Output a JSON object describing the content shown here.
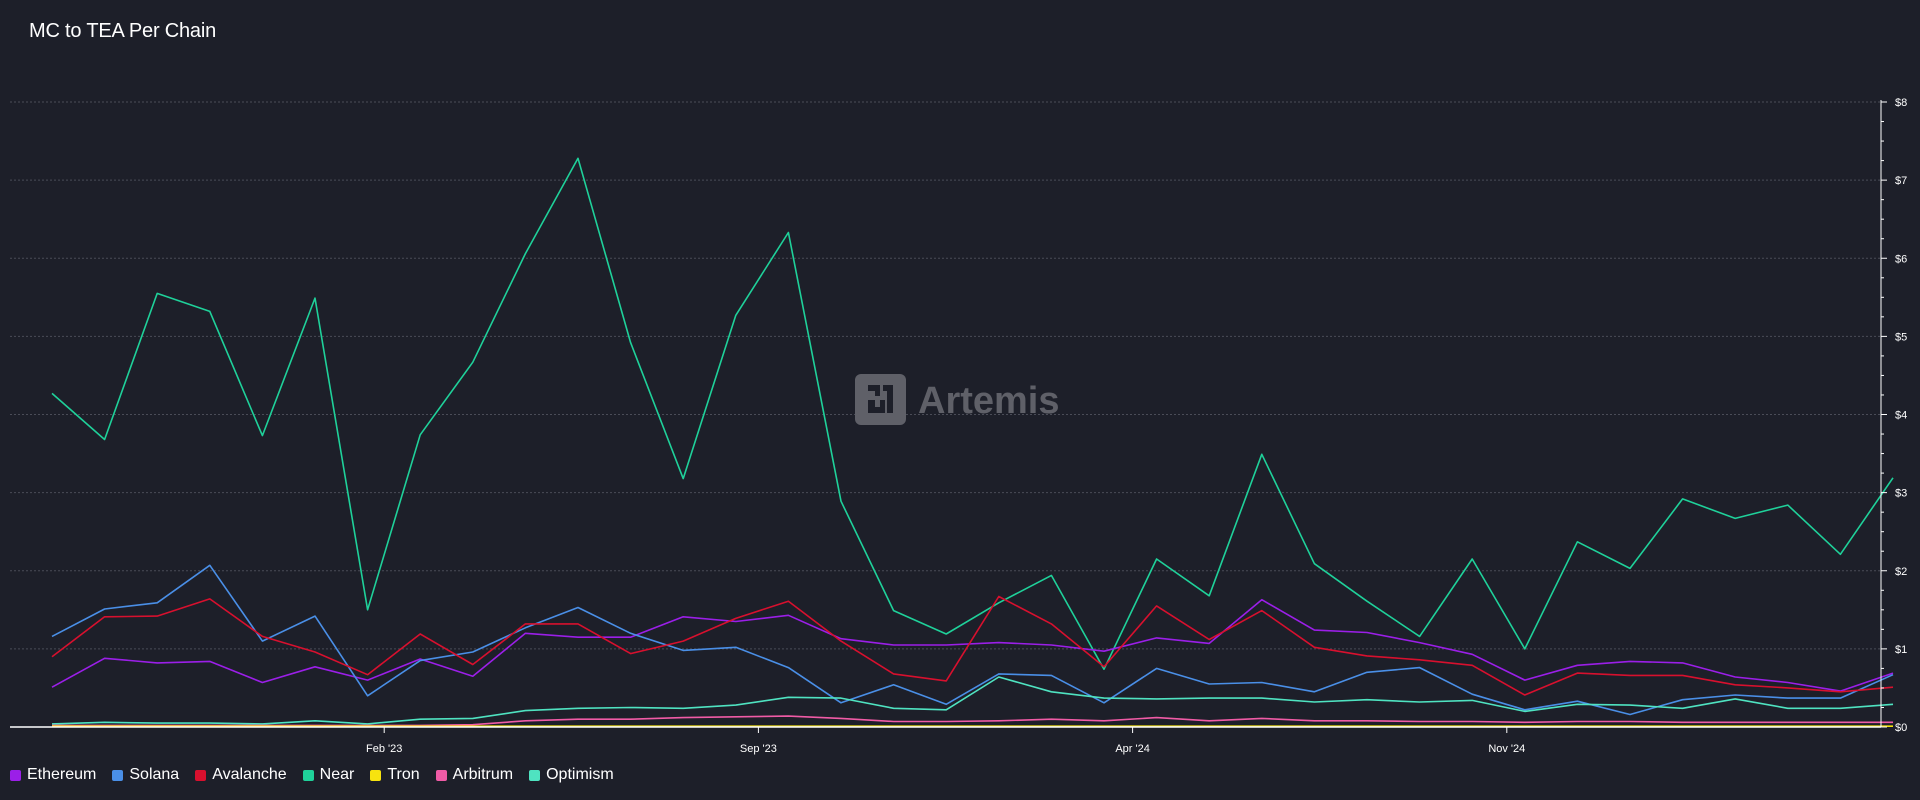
{
  "page": {
    "title": "MC to TEA Per Chain",
    "watermark": "Artemis"
  },
  "chart_data": {
    "type": "line",
    "title": "MC to TEA Per Chain",
    "ylim": [
      0,
      8
    ],
    "y_ticks": [
      "$0",
      "$1",
      "$2",
      "$3",
      "$4",
      "$5",
      "$6",
      "$7",
      "$8"
    ],
    "x_range": [
      0,
      35
    ],
    "x_ticks": [
      {
        "label": "Feb '23",
        "x": 7
      },
      {
        "label": "Sep '23",
        "x": 14
      },
      {
        "label": "Apr '24",
        "x": 21
      },
      {
        "label": "Nov '24",
        "x": 28
      }
    ],
    "grid": true,
    "legend_position": "bottom-left",
    "series": [
      {
        "name": "Near",
        "color": "#1fd19a",
        "values": [
          4.27,
          3.68,
          5.55,
          5.32,
          3.73,
          5.49,
          1.5,
          3.74,
          4.67,
          6.06,
          7.28,
          4.92,
          3.18,
          5.27,
          6.33,
          2.89,
          1.49,
          1.19,
          1.59,
          1.94,
          0.74,
          2.15,
          1.68,
          3.49,
          2.09,
          1.61,
          1.16,
          2.15,
          1.0,
          2.37,
          2.03,
          2.92,
          2.67,
          2.84,
          2.21,
          3.19
        ]
      },
      {
        "name": "Ethereum",
        "color": "#9b1fe8",
        "values": [
          0.51,
          0.88,
          0.82,
          0.84,
          0.57,
          0.77,
          0.6,
          0.87,
          0.65,
          1.2,
          1.15,
          1.15,
          1.41,
          1.35,
          1.43,
          1.13,
          1.05,
          1.05,
          1.08,
          1.05,
          0.97,
          1.14,
          1.07,
          1.63,
          1.24,
          1.21,
          1.08,
          0.93,
          0.6,
          0.79,
          0.84,
          0.82,
          0.64,
          0.57,
          0.46,
          0.69
        ]
      },
      {
        "name": "Solana",
        "color": "#4a8fe7",
        "values": [
          1.16,
          1.51,
          1.59,
          2.07,
          1.1,
          1.42,
          0.4,
          0.85,
          0.96,
          1.27,
          1.53,
          1.2,
          0.98,
          1.02,
          0.76,
          0.31,
          0.54,
          0.29,
          0.68,
          0.66,
          0.31,
          0.75,
          0.55,
          0.57,
          0.45,
          0.7,
          0.76,
          0.42,
          0.22,
          0.33,
          0.16,
          0.35,
          0.41,
          0.37,
          0.37,
          0.67
        ]
      },
      {
        "name": "Avalanche",
        "color": "#d8102e",
        "values": [
          0.9,
          1.41,
          1.42,
          1.64,
          1.16,
          0.96,
          0.67,
          1.19,
          0.8,
          1.32,
          1.32,
          0.94,
          1.1,
          1.39,
          1.61,
          1.1,
          0.68,
          0.59,
          1.67,
          1.32,
          0.77,
          1.55,
          1.12,
          1.49,
          1.02,
          0.91,
          0.86,
          0.79,
          0.41,
          0.69,
          0.66,
          0.66,
          0.54,
          0.5,
          0.45,
          0.51
        ]
      },
      {
        "name": "Optimism",
        "color": "#4fe3c1",
        "values": [
          0.04,
          0.06,
          0.05,
          0.05,
          0.04,
          0.08,
          0.04,
          0.1,
          0.11,
          0.21,
          0.24,
          0.25,
          0.24,
          0.28,
          0.38,
          0.37,
          0.24,
          0.22,
          0.64,
          0.45,
          0.37,
          0.36,
          0.37,
          0.37,
          0.32,
          0.35,
          0.32,
          0.34,
          0.2,
          0.29,
          0.28,
          0.24,
          0.36,
          0.24,
          0.24,
          0.29
        ]
      },
      {
        "name": "Arbitrum",
        "color": "#f05ba6",
        "values": [
          0.02,
          0.02,
          0.02,
          0.02,
          0.02,
          0.02,
          0.02,
          0.02,
          0.03,
          0.08,
          0.1,
          0.1,
          0.12,
          0.13,
          0.14,
          0.11,
          0.07,
          0.07,
          0.08,
          0.1,
          0.08,
          0.12,
          0.08,
          0.11,
          0.08,
          0.08,
          0.07,
          0.07,
          0.06,
          0.07,
          0.07,
          0.06,
          0.06,
          0.06,
          0.06,
          0.06
        ]
      },
      {
        "name": "Tron",
        "color": "#f7e30f",
        "values": [
          0.01,
          0.01,
          0.01,
          0.01,
          0.01,
          0.01,
          0.01,
          0.01,
          0.01,
          0.01,
          0.01,
          0.01,
          0.01,
          0.01,
          0.01,
          0.01,
          0.01,
          0.01,
          0.01,
          0.01,
          0.01,
          0.01,
          0.01,
          0.01,
          0.01,
          0.01,
          0.01,
          0.01,
          0.01,
          0.01,
          0.01,
          0.01,
          0.01,
          0.01,
          0.01,
          0.01
        ]
      }
    ],
    "legend": [
      {
        "name": "Ethereum",
        "color": "#9b1fe8"
      },
      {
        "name": "Solana",
        "color": "#4a8fe7"
      },
      {
        "name": "Avalanche",
        "color": "#d8102e"
      },
      {
        "name": "Near",
        "color": "#1fd19a"
      },
      {
        "name": "Tron",
        "color": "#f7e30f"
      },
      {
        "name": "Arbitrum",
        "color": "#f05ba6"
      },
      {
        "name": "Optimism",
        "color": "#4fe3c1"
      }
    ]
  }
}
